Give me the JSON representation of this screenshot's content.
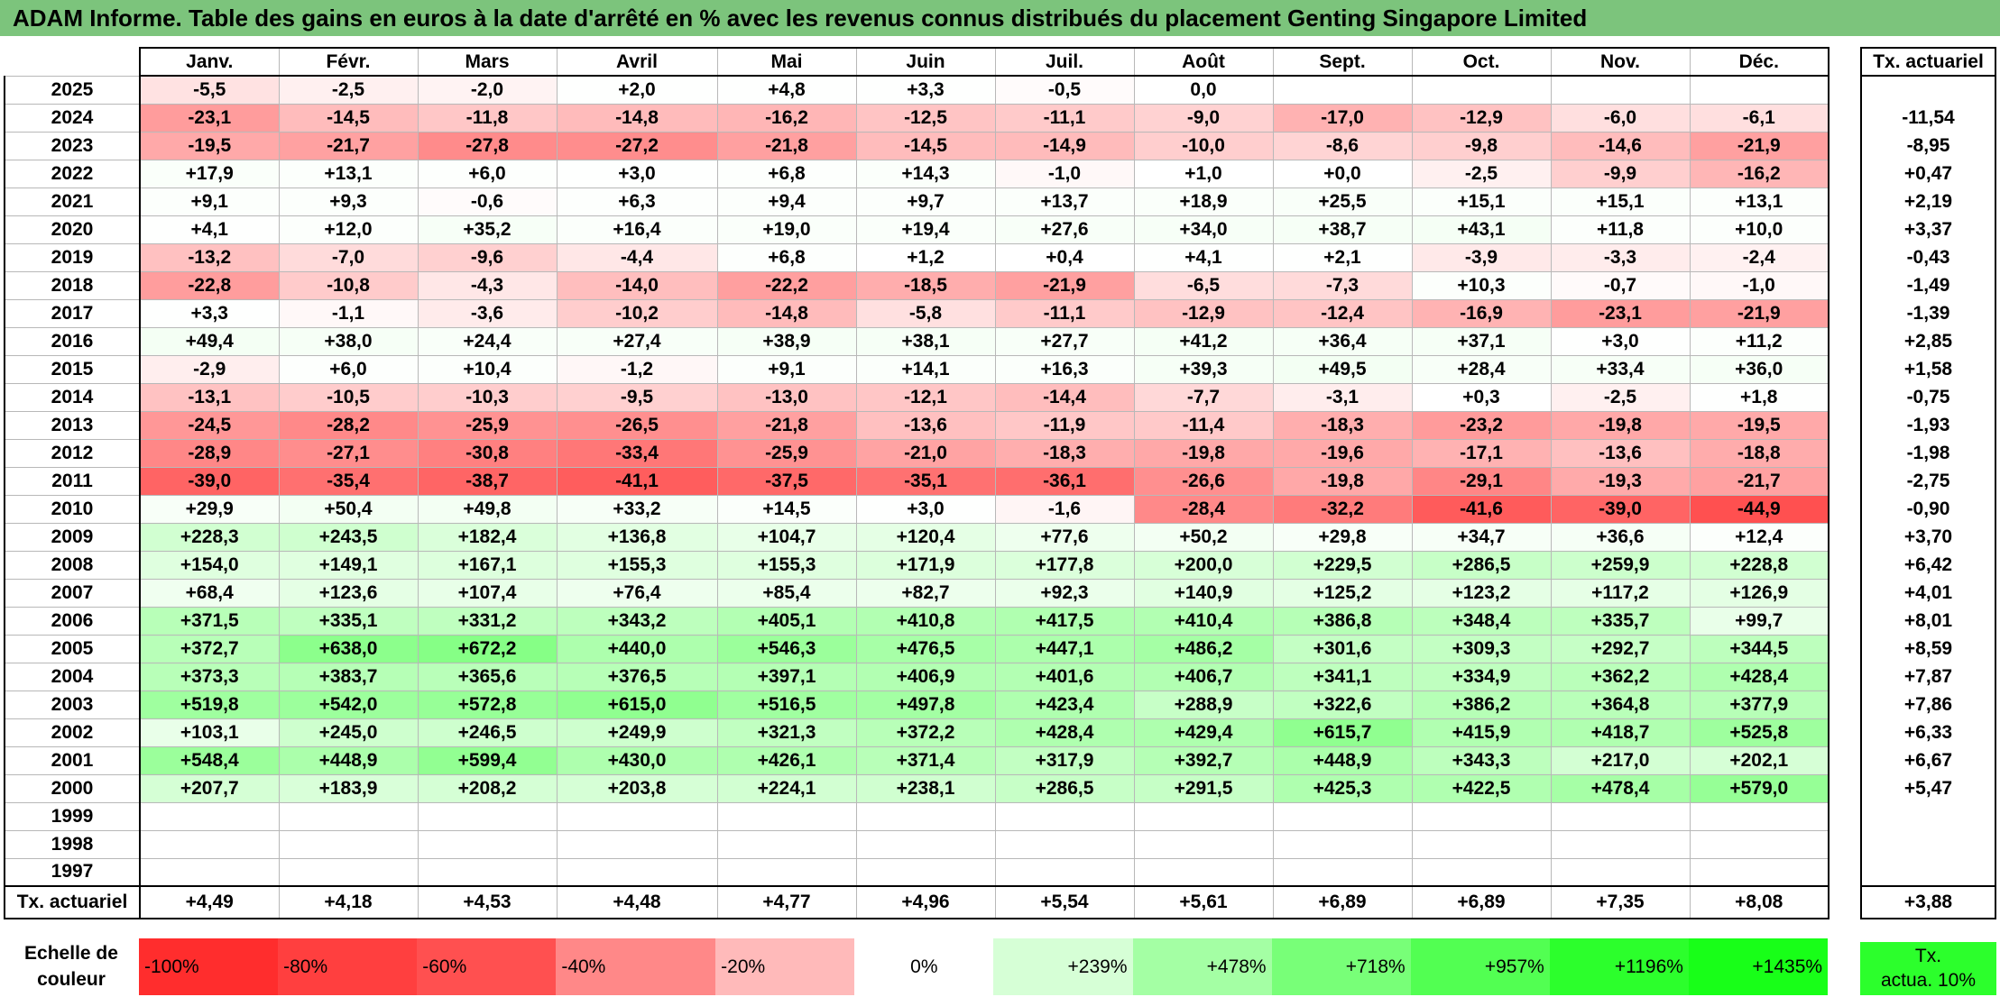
{
  "title": "ADAM Informe. Table des gains en euros à la date d'arrêté en % avec les revenus connus distribués du placement Genting Singapore Limited",
  "chart_data": {
    "type": "heatmap",
    "title": "ADAM Informe. Table des gains en euros à la date d'arrêté en % avec les revenus connus distribués du placement Genting Singapore Limited",
    "months": [
      "Janv.",
      "Févr.",
      "Mars",
      "Avril",
      "Mai",
      "Juin",
      "Juil.",
      "Août",
      "Sept.",
      "Oct.",
      "Nov.",
      "Déc."
    ],
    "side_header": "Tx. actuariel",
    "rows": [
      {
        "year": "2025",
        "values": [
          "-5,5",
          "-2,5",
          "-2,0",
          "+2,0",
          "+4,8",
          "+3,3",
          "-0,5",
          "0,0",
          "",
          "",
          "",
          ""
        ],
        "rate": ""
      },
      {
        "year": "2024",
        "values": [
          "-23,1",
          "-14,5",
          "-11,8",
          "-14,8",
          "-16,2",
          "-12,5",
          "-11,1",
          "-9,0",
          "-17,0",
          "-12,9",
          "-6,0",
          "-6,1"
        ],
        "rate": "-11,54"
      },
      {
        "year": "2023",
        "values": [
          "-19,5",
          "-21,7",
          "-27,8",
          "-27,2",
          "-21,8",
          "-14,5",
          "-14,9",
          "-10,0",
          "-8,6",
          "-9,8",
          "-14,6",
          "-21,9"
        ],
        "rate": "-8,95"
      },
      {
        "year": "2022",
        "values": [
          "+17,9",
          "+13,1",
          "+6,0",
          "+3,0",
          "+6,8",
          "+14,3",
          "-1,0",
          "+1,0",
          "+0,0",
          "-2,5",
          "-9,9",
          "-16,2"
        ],
        "rate": "+0,47"
      },
      {
        "year": "2021",
        "values": [
          "+9,1",
          "+9,3",
          "-0,6",
          "+6,3",
          "+9,4",
          "+9,7",
          "+13,7",
          "+18,9",
          "+25,5",
          "+15,1",
          "+15,1",
          "+13,1"
        ],
        "rate": "+2,19"
      },
      {
        "year": "2020",
        "values": [
          "+4,1",
          "+12,0",
          "+35,2",
          "+16,4",
          "+19,0",
          "+19,4",
          "+27,6",
          "+34,0",
          "+38,7",
          "+43,1",
          "+11,8",
          "+10,0"
        ],
        "rate": "+3,37"
      },
      {
        "year": "2019",
        "values": [
          "-13,2",
          "-7,0",
          "-9,6",
          "-4,4",
          "+6,8",
          "+1,2",
          "+0,4",
          "+4,1",
          "+2,1",
          "-3,9",
          "-3,3",
          "-2,4"
        ],
        "rate": "-0,43"
      },
      {
        "year": "2018",
        "values": [
          "-22,8",
          "-10,8",
          "-4,3",
          "-14,0",
          "-22,2",
          "-18,5",
          "-21,9",
          "-6,5",
          "-7,3",
          "+10,3",
          "-0,7",
          "-1,0"
        ],
        "rate": "-1,49"
      },
      {
        "year": "2017",
        "values": [
          "+3,3",
          "-1,1",
          "-3,6",
          "-10,2",
          "-14,8",
          "-5,8",
          "-11,1",
          "-12,9",
          "-12,4",
          "-16,9",
          "-23,1",
          "-21,9"
        ],
        "rate": "-1,39"
      },
      {
        "year": "2016",
        "values": [
          "+49,4",
          "+38,0",
          "+24,4",
          "+27,4",
          "+38,9",
          "+38,1",
          "+27,7",
          "+41,2",
          "+36,4",
          "+37,1",
          "+3,0",
          "+11,2"
        ],
        "rate": "+2,85"
      },
      {
        "year": "2015",
        "values": [
          "-2,9",
          "+6,0",
          "+10,4",
          "-1,2",
          "+9,1",
          "+14,1",
          "+16,3",
          "+39,3",
          "+49,5",
          "+28,4",
          "+33,4",
          "+36,0"
        ],
        "rate": "+1,58"
      },
      {
        "year": "2014",
        "values": [
          "-13,1",
          "-10,5",
          "-10,3",
          "-9,5",
          "-13,0",
          "-12,1",
          "-14,4",
          "-7,7",
          "-3,1",
          "+0,3",
          "-2,5",
          "+1,8"
        ],
        "rate": "-0,75"
      },
      {
        "year": "2013",
        "values": [
          "-24,5",
          "-28,2",
          "-25,9",
          "-26,5",
          "-21,8",
          "-13,6",
          "-11,9",
          "-11,4",
          "-18,3",
          "-23,2",
          "-19,8",
          "-19,5"
        ],
        "rate": "-1,93"
      },
      {
        "year": "2012",
        "values": [
          "-28,9",
          "-27,1",
          "-30,8",
          "-33,4",
          "-25,9",
          "-21,0",
          "-18,3",
          "-19,8",
          "-19,6",
          "-17,1",
          "-13,6",
          "-18,8"
        ],
        "rate": "-1,98"
      },
      {
        "year": "2011",
        "values": [
          "-39,0",
          "-35,4",
          "-38,7",
          "-41,1",
          "-37,5",
          "-35,1",
          "-36,1",
          "-26,6",
          "-19,8",
          "-29,1",
          "-19,3",
          "-21,7"
        ],
        "rate": "-2,75"
      },
      {
        "year": "2010",
        "values": [
          "+29,9",
          "+50,4",
          "+49,8",
          "+33,2",
          "+14,5",
          "+3,0",
          "-1,6",
          "-28,4",
          "-32,2",
          "-41,6",
          "-39,0",
          "-44,9"
        ],
        "rate": "-0,90"
      },
      {
        "year": "2009",
        "values": [
          "+228,3",
          "+243,5",
          "+182,4",
          "+136,8",
          "+104,7",
          "+120,4",
          "+77,6",
          "+50,2",
          "+29,8",
          "+34,7",
          "+36,6",
          "+12,4"
        ],
        "rate": "+3,70"
      },
      {
        "year": "2008",
        "values": [
          "+154,0",
          "+149,1",
          "+167,1",
          "+155,3",
          "+155,3",
          "+171,9",
          "+177,8",
          "+200,0",
          "+229,5",
          "+286,5",
          "+259,9",
          "+228,8"
        ],
        "rate": "+6,42"
      },
      {
        "year": "2007",
        "values": [
          "+68,4",
          "+123,6",
          "+107,4",
          "+76,4",
          "+85,4",
          "+82,7",
          "+92,3",
          "+140,9",
          "+125,2",
          "+123,2",
          "+117,2",
          "+126,9"
        ],
        "rate": "+4,01"
      },
      {
        "year": "2006",
        "values": [
          "+371,5",
          "+335,1",
          "+331,2",
          "+343,2",
          "+405,1",
          "+410,8",
          "+417,5",
          "+410,4",
          "+386,8",
          "+348,4",
          "+335,7",
          "+99,7"
        ],
        "rate": "+8,01"
      },
      {
        "year": "2005",
        "values": [
          "+372,7",
          "+638,0",
          "+672,2",
          "+440,0",
          "+546,3",
          "+476,5",
          "+447,1",
          "+486,2",
          "+301,6",
          "+309,3",
          "+292,7",
          "+344,5"
        ],
        "rate": "+8,59"
      },
      {
        "year": "2004",
        "values": [
          "+373,3",
          "+383,7",
          "+365,6",
          "+376,5",
          "+397,1",
          "+406,9",
          "+401,6",
          "+406,7",
          "+341,1",
          "+334,9",
          "+362,2",
          "+428,4"
        ],
        "rate": "+7,87"
      },
      {
        "year": "2003",
        "values": [
          "+519,8",
          "+542,0",
          "+572,8",
          "+615,0",
          "+516,5",
          "+497,8",
          "+423,4",
          "+288,9",
          "+322,6",
          "+386,2",
          "+364,8",
          "+377,9"
        ],
        "rate": "+7,86"
      },
      {
        "year": "2002",
        "values": [
          "+103,1",
          "+245,0",
          "+246,5",
          "+249,9",
          "+321,3",
          "+372,2",
          "+428,4",
          "+429,4",
          "+615,7",
          "+415,9",
          "+418,7",
          "+525,8"
        ],
        "rate": "+6,33"
      },
      {
        "year": "2001",
        "values": [
          "+548,4",
          "+448,9",
          "+599,4",
          "+430,0",
          "+426,1",
          "+371,4",
          "+317,9",
          "+392,7",
          "+448,9",
          "+343,3",
          "+217,0",
          "+202,1"
        ],
        "rate": "+6,67"
      },
      {
        "year": "2000",
        "values": [
          "+207,7",
          "+183,9",
          "+208,2",
          "+203,8",
          "+224,1",
          "+238,1",
          "+286,5",
          "+291,5",
          "+425,3",
          "+422,5",
          "+478,4",
          "+579,0"
        ],
        "rate": "+5,47"
      },
      {
        "year": "1999",
        "values": [
          "",
          "",
          "",
          "",
          "",
          "",
          "",
          "",
          "",
          "",
          "",
          ""
        ],
        "rate": ""
      },
      {
        "year": "1998",
        "values": [
          "",
          "",
          "",
          "",
          "",
          "",
          "",
          "",
          "",
          "",
          "",
          ""
        ],
        "rate": ""
      },
      {
        "year": "1997",
        "values": [
          "",
          "",
          "",
          "",
          "",
          "",
          "",
          "",
          "",
          "",
          "",
          ""
        ],
        "rate": ""
      }
    ],
    "footer": {
      "label": "Tx. actuariel",
      "values": [
        "+4,49",
        "+4,18",
        "+4,53",
        "+4,48",
        "+4,77",
        "+4,96",
        "+5,54",
        "+5,61",
        "+6,89",
        "+6,89",
        "+7,35",
        "+8,08"
      ],
      "rate": "+3,88"
    },
    "color_scale": {
      "label_line1": "Echelle de",
      "label_line2": "couleur",
      "steps": [
        {
          "label": "-100%",
          "value": -100,
          "color": "#ff2d2d"
        },
        {
          "label": "-80%",
          "value": -80,
          "color": "#ff3f3f"
        },
        {
          "label": "-60%",
          "value": -60,
          "color": "#ff5050"
        },
        {
          "label": "-40%",
          "value": -40,
          "color": "#ff8888"
        },
        {
          "label": "-20%",
          "value": -20,
          "color": "#ffbaba"
        },
        {
          "label": "0%",
          "value": 0,
          "color": "#ffffff"
        },
        {
          "label": "+239%",
          "value": 239,
          "color": "#d6ffd6"
        },
        {
          "label": "+478%",
          "value": 478,
          "color": "#a4ffa4"
        },
        {
          "label": "+718%",
          "value": 718,
          "color": "#78ff78"
        },
        {
          "label": "+957%",
          "value": 957,
          "color": "#52ff52"
        },
        {
          "label": "+1196%",
          "value": 1196,
          "color": "#2cff2c"
        },
        {
          "label": "+1435%",
          "value": 1435,
          "color": "#18ff18"
        }
      ],
      "side_line1": "Tx.",
      "side_line2": "actua. 10%"
    }
  }
}
